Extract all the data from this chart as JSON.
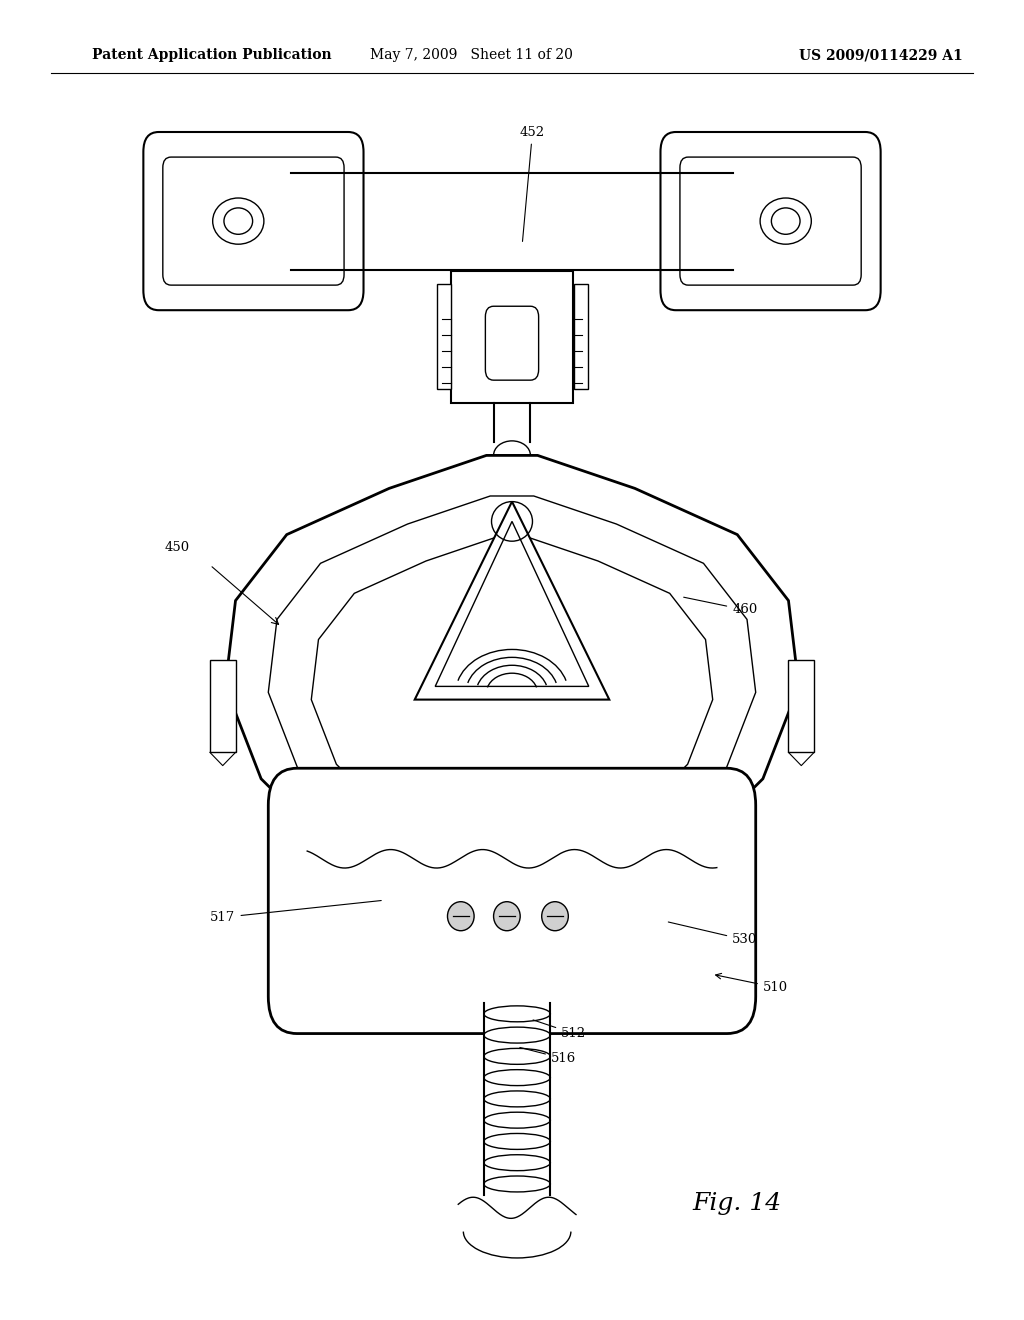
{
  "bg_color": "#ffffff",
  "header_left": "Patent Application Publication",
  "header_center": "May 7, 2009   Sheet 11 of 20",
  "header_right": "US 2009/0114229 A1",
  "figure_label": "Fig. 14",
  "header_fontsize": 10,
  "fig_label_fontsize": 18,
  "annotation_fontsize": 9.5
}
